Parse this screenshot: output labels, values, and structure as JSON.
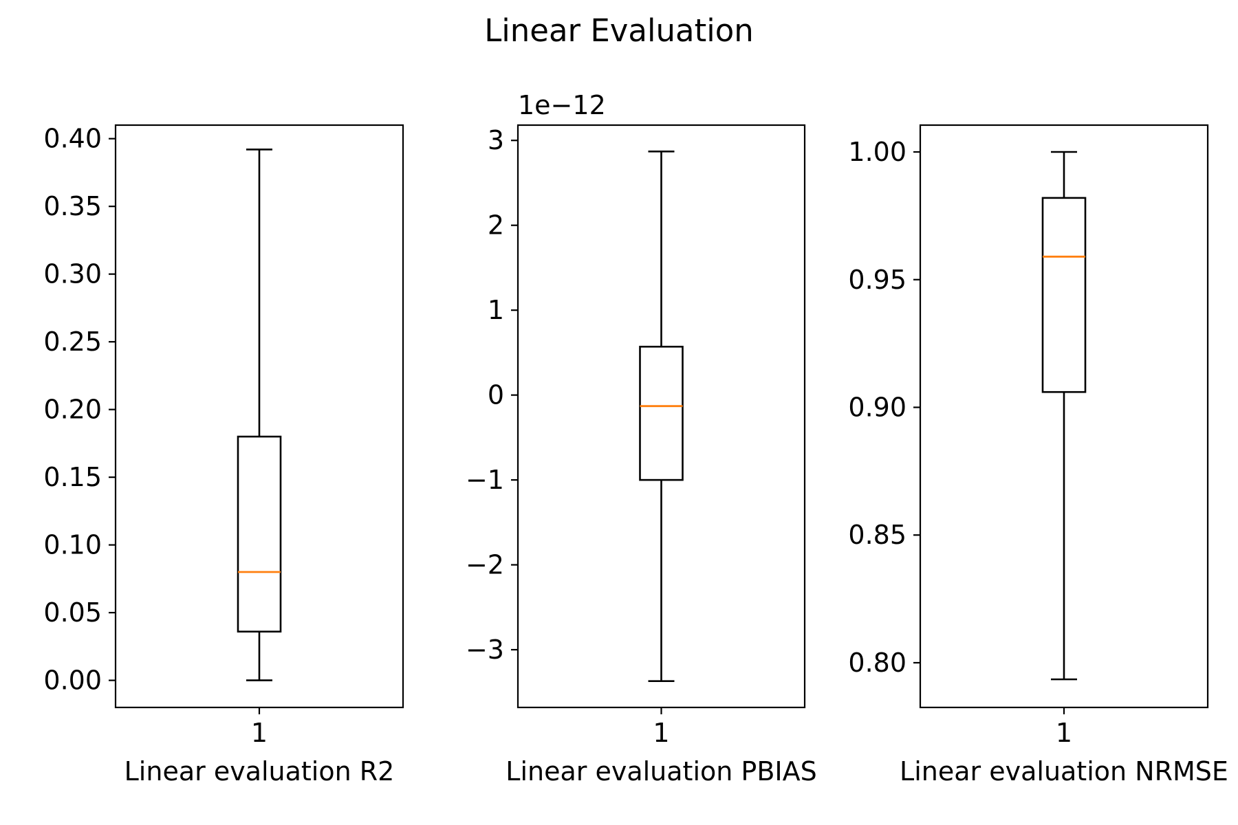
{
  "suptitle": "Linear Evaluation",
  "chart_data": [
    {
      "type": "box",
      "xlabel": "Linear evaluation R2",
      "categories": [
        "1"
      ],
      "ylim": [
        -0.02,
        0.41
      ],
      "yticks": [
        0.0,
        0.05,
        0.1,
        0.15,
        0.2,
        0.25,
        0.3,
        0.35,
        0.4
      ],
      "ytick_labels": [
        "0.00",
        "0.05",
        "0.10",
        "0.15",
        "0.20",
        "0.25",
        "0.30",
        "0.35",
        "0.40"
      ],
      "offset_label": "",
      "boxes": [
        {
          "whislo": 0.0,
          "q1": 0.036,
          "median": 0.08,
          "q3": 0.18,
          "whishi": 0.392
        }
      ],
      "grid": false
    },
    {
      "type": "box",
      "xlabel": "Linear evaluation PBIAS",
      "categories": [
        "1"
      ],
      "ylim": [
        -3.68,
        3.18
      ],
      "yticks": [
        -3,
        -2,
        -1,
        0,
        1,
        2,
        3
      ],
      "ytick_labels": [
        "−3",
        "−2",
        "−1",
        "0",
        "1",
        "2",
        "3"
      ],
      "offset_label": "1e−12",
      "boxes": [
        {
          "whislo": -3.37,
          "q1": -1.0,
          "median": -0.13,
          "q3": 0.57,
          "whishi": 2.87
        }
      ],
      "grid": false
    },
    {
      "type": "box",
      "xlabel": "Linear evaluation NRMSE",
      "categories": [
        "1"
      ],
      "ylim": [
        0.7825,
        1.0105
      ],
      "yticks": [
        0.8,
        0.85,
        0.9,
        0.95,
        1.0
      ],
      "ytick_labels": [
        "0.80",
        "0.85",
        "0.90",
        "0.95",
        "1.00"
      ],
      "offset_label": "",
      "boxes": [
        {
          "whislo": 0.7935,
          "q1": 0.906,
          "median": 0.959,
          "q3": 0.982,
          "whishi": 1.0
        }
      ],
      "grid": false
    }
  ],
  "colors": {
    "median": "#ff7f0e",
    "box": "#000000"
  }
}
